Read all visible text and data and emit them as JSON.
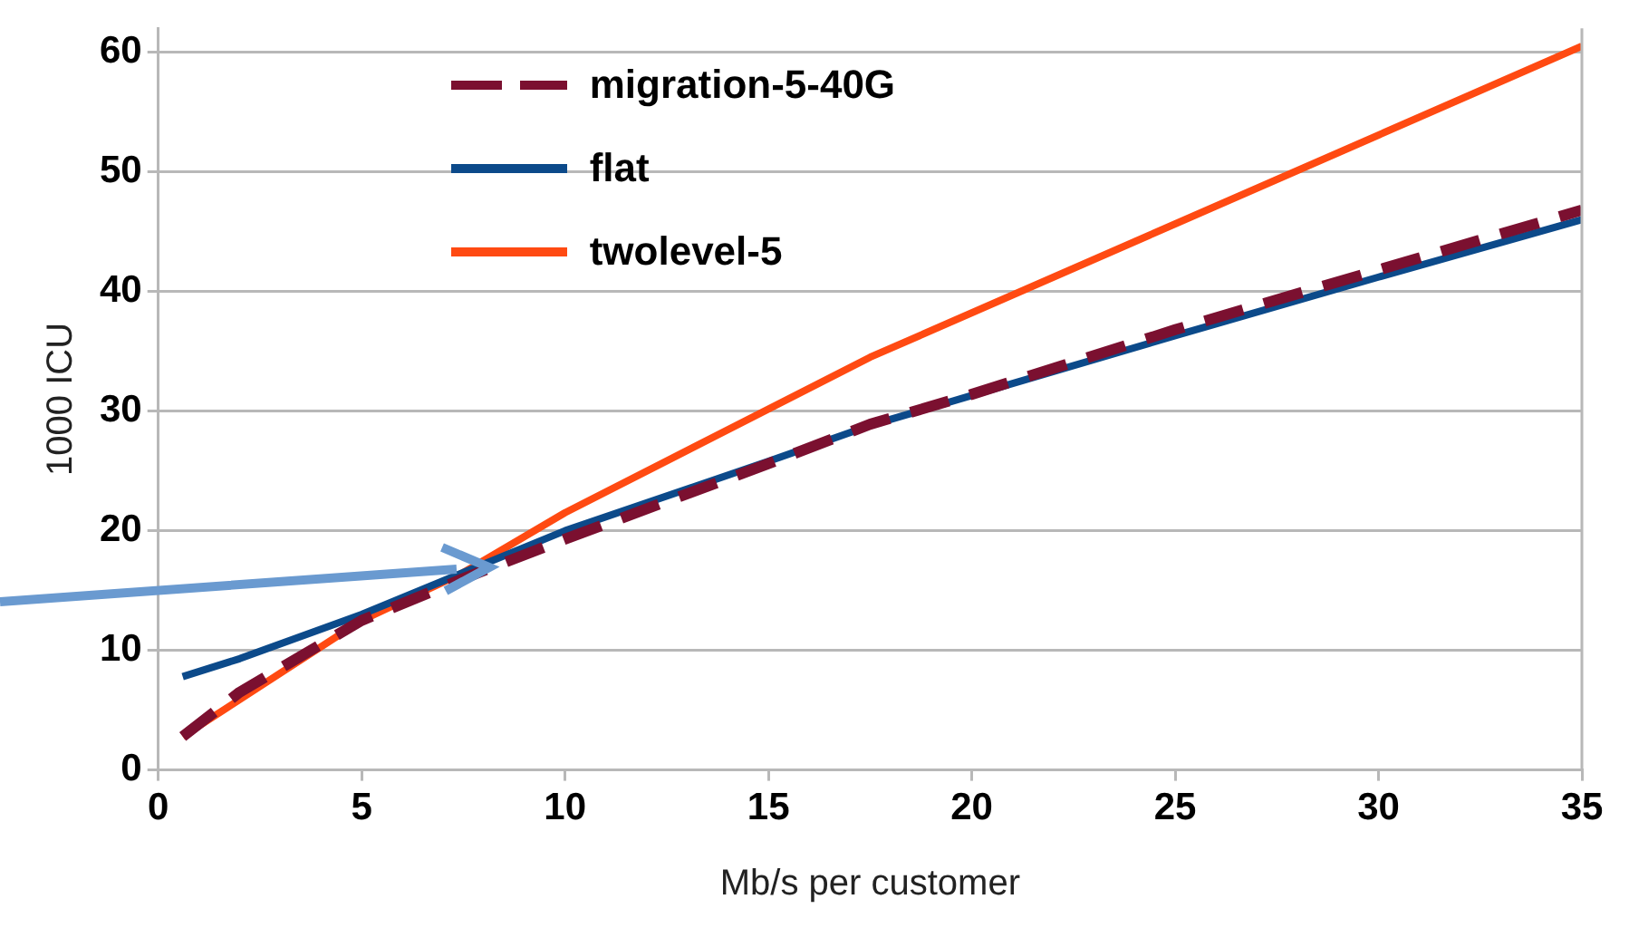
{
  "chart_data": {
    "type": "line",
    "xlabel": "Mb/s per customer",
    "ylabel": "1000 ICU",
    "xlim": [
      0,
      35
    ],
    "xticks": [
      0,
      5,
      10,
      15,
      20,
      25,
      30,
      35
    ],
    "ylim": [
      0,
      62
    ],
    "yticks": [
      0,
      10,
      20,
      30,
      40,
      50,
      60
    ],
    "grid": "y",
    "legend": "top left",
    "marker": "none",
    "series": [
      {
        "name": "migration-5-40G",
        "color": "#7b1030",
        "line_style": "dashed",
        "x": [
          0.6,
          2,
          5,
          7.5,
          10,
          15,
          17.5,
          20,
          25,
          30,
          35
        ],
        "values": [
          2.8,
          6.5,
          12.5,
          16,
          19.3,
          25.6,
          28.9,
          31.4,
          36.8,
          41.8,
          46.8
        ]
      },
      {
        "name": "flat",
        "color": "#0c4a8a",
        "line_style": "solid",
        "x": [
          0.6,
          2,
          5,
          7.5,
          10,
          15,
          17.5,
          20,
          25,
          30,
          35
        ],
        "values": [
          7.8,
          9.3,
          13,
          16.5,
          20,
          25.8,
          28.8,
          31.3,
          36.3,
          41.2,
          46
        ]
      },
      {
        "name": "twolevel-5",
        "color": "#ff4a12",
        "line_style": "solid",
        "x": [
          0.6,
          5,
          7.5,
          10,
          17.5,
          35
        ],
        "values": [
          2.8,
          12.5,
          16.5,
          21.5,
          34.5,
          60.5
        ]
      }
    ]
  }
}
